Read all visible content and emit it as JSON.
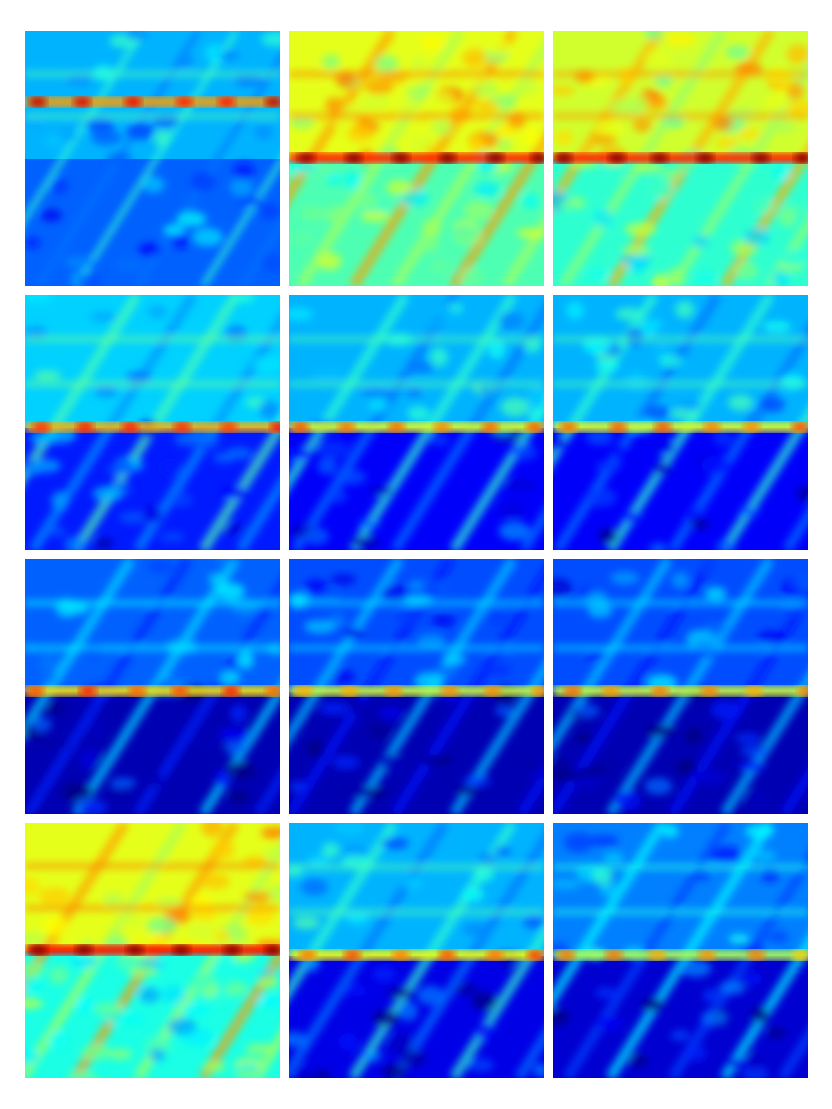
{
  "figure": {
    "rows": 4,
    "cols": 3,
    "colormap": "jet",
    "colors": {
      "background": "#ffffff",
      "low": "#0000cc",
      "mid_low": "#00ccff",
      "mid": "#00ff66",
      "mid_high": "#ffff00",
      "high": "#ff0000"
    },
    "panels": [
      {
        "id": "r1c1",
        "level": 0.28,
        "band_level": 0.72,
        "upper_level": 0.3,
        "lower_level": 0.22,
        "split": 0.5,
        "texture": "diagonal-streaks"
      },
      {
        "id": "r1c2",
        "level": 0.55,
        "band_level": 0.85,
        "upper_level": 0.6,
        "lower_level": 0.45,
        "split": 0.5,
        "texture": "speckled-diagonal"
      },
      {
        "id": "r1c3",
        "level": 0.55,
        "band_level": 0.85,
        "upper_level": 0.58,
        "lower_level": 0.42,
        "split": 0.5,
        "texture": "speckled-diagonal"
      },
      {
        "id": "r2c1",
        "level": 0.25,
        "band_level": 0.7,
        "upper_level": 0.33,
        "lower_level": 0.15,
        "split": 0.52,
        "texture": "diagonal-speckle"
      },
      {
        "id": "r2c2",
        "level": 0.22,
        "band_level": 0.6,
        "upper_level": 0.3,
        "lower_level": 0.12,
        "split": 0.52,
        "texture": "diagonal-speckle"
      },
      {
        "id": "r2c3",
        "level": 0.22,
        "band_level": 0.6,
        "upper_level": 0.3,
        "lower_level": 0.12,
        "split": 0.52,
        "texture": "diagonal-speckle"
      },
      {
        "id": "r3c1",
        "level": 0.15,
        "band_level": 0.65,
        "upper_level": 0.22,
        "lower_level": 0.05,
        "split": 0.52,
        "texture": "horizontal-bands"
      },
      {
        "id": "r3c2",
        "level": 0.13,
        "band_level": 0.58,
        "upper_level": 0.2,
        "lower_level": 0.05,
        "split": 0.52,
        "texture": "horizontal-bands"
      },
      {
        "id": "r3c3",
        "level": 0.13,
        "band_level": 0.58,
        "upper_level": 0.2,
        "lower_level": 0.05,
        "split": 0.52,
        "texture": "horizontal-bands"
      },
      {
        "id": "r4c1",
        "level": 0.55,
        "band_level": 0.88,
        "upper_level": 0.6,
        "lower_level": 0.4,
        "split": 0.5,
        "texture": "speckled-diagonal"
      },
      {
        "id": "r4c2",
        "level": 0.22,
        "band_level": 0.62,
        "upper_level": 0.3,
        "lower_level": 0.1,
        "split": 0.52,
        "texture": "diagonal-speckle"
      },
      {
        "id": "r4c3",
        "level": 0.17,
        "band_level": 0.55,
        "upper_level": 0.25,
        "lower_level": 0.08,
        "split": 0.52,
        "texture": "horizontal-bands"
      }
    ]
  }
}
